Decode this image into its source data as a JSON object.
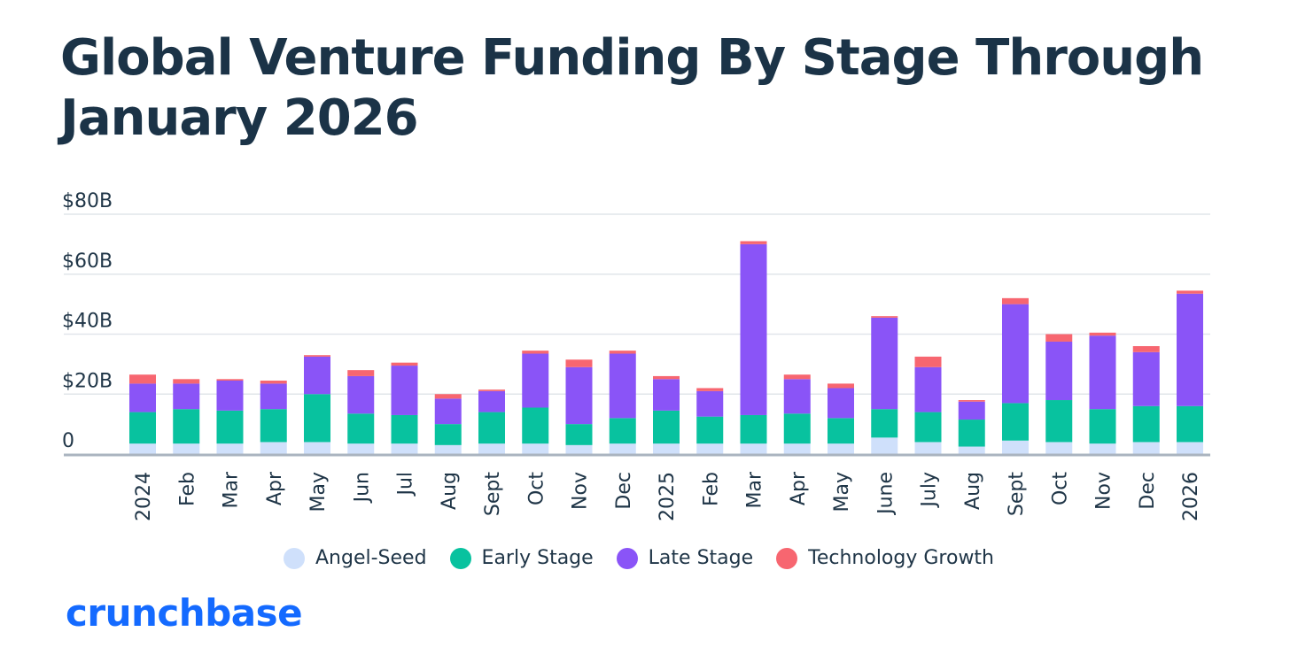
{
  "chart_data": {
    "type": "bar",
    "stacked": true,
    "title": "Global Venture Funding By Stage Through January 2026",
    "xlabel": "",
    "ylabel": "",
    "ylim": [
      0,
      80
    ],
    "yticks": [
      0,
      20,
      40,
      60,
      80
    ],
    "ytick_labels": [
      "0",
      "$20B",
      "$40B",
      "$60B",
      "$80B"
    ],
    "categories": [
      "2024",
      "Feb",
      "Mar",
      "Apr",
      "May",
      "Jun",
      "Jul",
      "Aug",
      "Sept",
      "Oct",
      "Nov",
      "Dec",
      "2025",
      "Feb",
      "Mar",
      "Apr",
      "May",
      "June",
      "July",
      "Aug",
      "Sept",
      "Oct",
      "Nov",
      "Dec",
      "2026"
    ],
    "series": [
      {
        "name": "Angel-Seed",
        "color": "#cfe0fb",
        "values": [
          3.5,
          3.5,
          3.5,
          4,
          4,
          3.5,
          3.5,
          3,
          3.5,
          3.5,
          3,
          3.5,
          3.5,
          3.5,
          3.5,
          3.5,
          3.5,
          5.5,
          4,
          2.5,
          4.5,
          4,
          3.5,
          4,
          4
        ]
      },
      {
        "name": "Early Stage",
        "color": "#08c29f",
        "values": [
          10.5,
          11.5,
          11,
          11,
          16,
          10,
          9.5,
          7,
          10.5,
          12,
          7,
          8.5,
          11,
          9,
          9.5,
          10,
          8.5,
          9.5,
          10,
          9,
          12.5,
          14,
          11.5,
          12,
          12
        ]
      },
      {
        "name": "Late Stage",
        "color": "#8a54f7",
        "values": [
          9.5,
          8.5,
          10,
          8.5,
          12.5,
          12.5,
          16.5,
          8.5,
          7,
          18,
          19,
          21.5,
          10.5,
          8.5,
          57,
          11.5,
          10,
          30.5,
          15,
          6,
          33,
          19.5,
          24.5,
          18,
          37.5
        ]
      },
      {
        "name": "Technology Growth",
        "color": "#f76670",
        "values": [
          3,
          1.5,
          0.5,
          1,
          0.5,
          2,
          1,
          1.5,
          0.5,
          1,
          2.5,
          1,
          1,
          1,
          1,
          1.5,
          1.5,
          0.5,
          3.5,
          0.5,
          2,
          2.5,
          1,
          2,
          1
        ]
      }
    ]
  },
  "legend_entries": [
    "Angel-Seed",
    "Early Stage",
    "Late Stage",
    "Technology Growth"
  ],
  "brand": {
    "logo_text": "crunchbase",
    "color": "#146aff"
  },
  "colors": {
    "title": "#1b3347",
    "grid": "#e1e6ea",
    "axis": "#aab4bf"
  }
}
